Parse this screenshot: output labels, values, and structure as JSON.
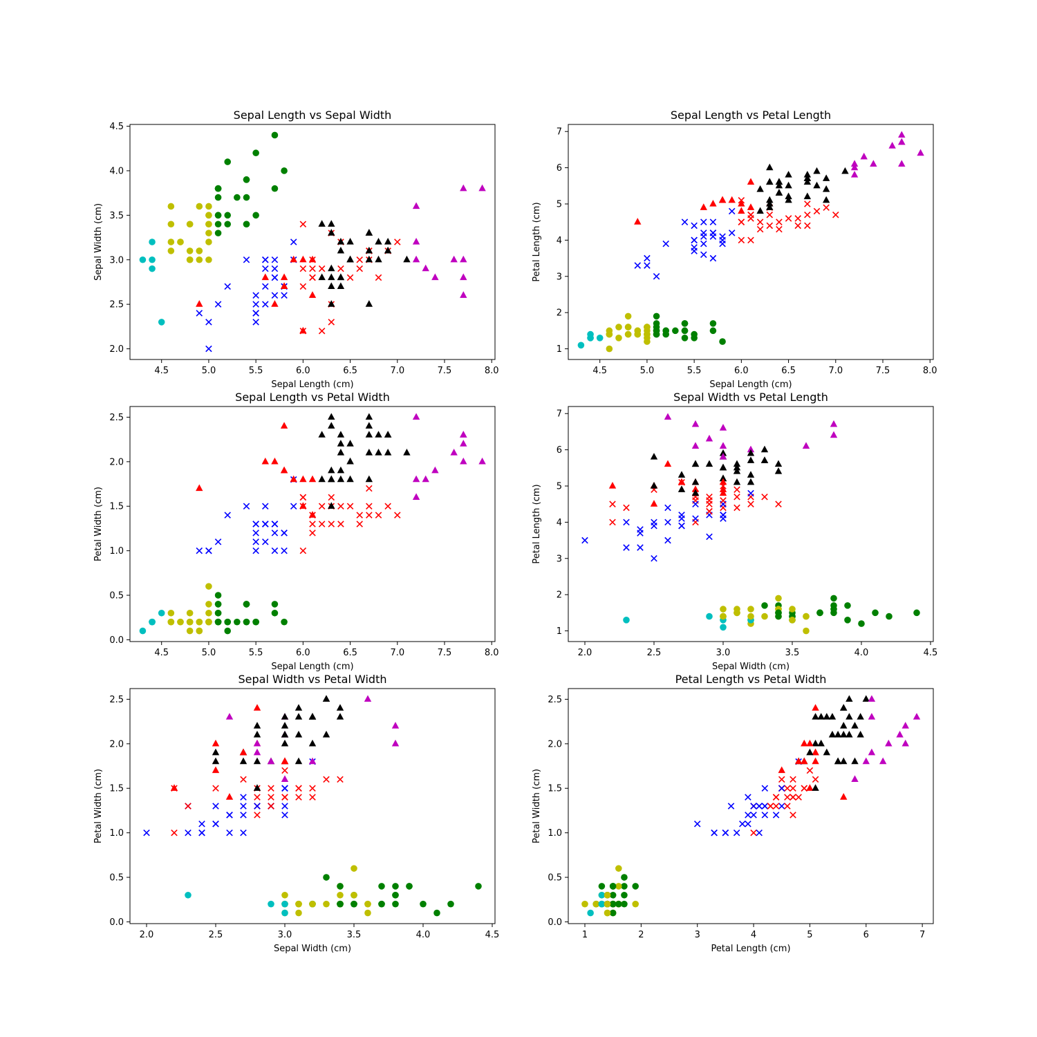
{
  "colors": {
    "setosa_small": "#00bfbf",
    "setosa_mid": "#bfbf00",
    "setosa_large": "#008000",
    "versicolor_small": "#0000ff",
    "versicolor_large": "#ff0000",
    "virginica_small": "#ff0000",
    "virginica_mid": "#000000",
    "virginica_large": "#bf00bf"
  },
  "markers": {
    "setosa": "circle",
    "versicolor": "x",
    "virginica": "triangle"
  },
  "iris": [
    [
      5.1,
      3.5,
      1.4,
      0.2,
      0
    ],
    [
      4.9,
      3.0,
      1.4,
      0.2,
      0
    ],
    [
      4.7,
      3.2,
      1.3,
      0.2,
      0
    ],
    [
      4.6,
      3.1,
      1.5,
      0.2,
      0
    ],
    [
      5.0,
      3.6,
      1.4,
      0.2,
      0
    ],
    [
      5.4,
      3.9,
      1.7,
      0.4,
      0
    ],
    [
      4.6,
      3.4,
      1.4,
      0.3,
      0
    ],
    [
      5.0,
      3.4,
      1.5,
      0.2,
      0
    ],
    [
      4.4,
      2.9,
      1.4,
      0.2,
      0
    ],
    [
      4.9,
      3.1,
      1.5,
      0.1,
      0
    ],
    [
      5.4,
      3.7,
      1.5,
      0.2,
      0
    ],
    [
      4.8,
      3.4,
      1.6,
      0.2,
      0
    ],
    [
      4.8,
      3.0,
      1.4,
      0.1,
      0
    ],
    [
      4.3,
      3.0,
      1.1,
      0.1,
      0
    ],
    [
      5.8,
      4.0,
      1.2,
      0.2,
      0
    ],
    [
      5.7,
      4.4,
      1.5,
      0.4,
      0
    ],
    [
      5.4,
      3.9,
      1.3,
      0.4,
      0
    ],
    [
      5.1,
      3.5,
      1.4,
      0.3,
      0
    ],
    [
      5.7,
      3.8,
      1.7,
      0.3,
      0
    ],
    [
      5.1,
      3.8,
      1.5,
      0.3,
      0
    ],
    [
      5.4,
      3.4,
      1.7,
      0.2,
      0
    ],
    [
      5.1,
      3.7,
      1.5,
      0.4,
      0
    ],
    [
      4.6,
      3.6,
      1.0,
      0.2,
      0
    ],
    [
      5.1,
      3.3,
      1.7,
      0.5,
      0
    ],
    [
      4.8,
      3.4,
      1.9,
      0.2,
      0
    ],
    [
      5.0,
      3.0,
      1.6,
      0.2,
      0
    ],
    [
      5.0,
      3.4,
      1.6,
      0.4,
      0
    ],
    [
      5.2,
      3.5,
      1.5,
      0.2,
      0
    ],
    [
      5.2,
      3.4,
      1.4,
      0.2,
      0
    ],
    [
      4.7,
      3.2,
      1.6,
      0.2,
      0
    ],
    [
      4.8,
      3.1,
      1.6,
      0.2,
      0
    ],
    [
      5.4,
      3.4,
      1.5,
      0.4,
      0
    ],
    [
      5.2,
      4.1,
      1.5,
      0.1,
      0
    ],
    [
      5.5,
      4.2,
      1.4,
      0.2,
      0
    ],
    [
      4.9,
      3.1,
      1.5,
      0.2,
      0
    ],
    [
      5.0,
      3.2,
      1.2,
      0.2,
      0
    ],
    [
      5.5,
      3.5,
      1.3,
      0.2,
      0
    ],
    [
      4.9,
      3.6,
      1.4,
      0.1,
      0
    ],
    [
      4.4,
      3.0,
      1.3,
      0.2,
      0
    ],
    [
      5.1,
      3.4,
      1.5,
      0.2,
      0
    ],
    [
      5.0,
      3.5,
      1.3,
      0.3,
      0
    ],
    [
      4.5,
      2.3,
      1.3,
      0.3,
      0
    ],
    [
      4.4,
      3.2,
      1.3,
      0.2,
      0
    ],
    [
      5.0,
      3.5,
      1.6,
      0.6,
      0
    ],
    [
      5.1,
      3.8,
      1.9,
      0.4,
      0
    ],
    [
      4.8,
      3.0,
      1.4,
      0.3,
      0
    ],
    [
      5.1,
      3.8,
      1.6,
      0.2,
      0
    ],
    [
      4.6,
      3.2,
      1.4,
      0.2,
      0
    ],
    [
      5.3,
      3.7,
      1.5,
      0.2,
      0
    ],
    [
      5.0,
      3.3,
      1.4,
      0.2,
      0
    ],
    [
      7.0,
      3.2,
      4.7,
      1.4,
      1
    ],
    [
      6.4,
      3.2,
      4.5,
      1.5,
      1
    ],
    [
      6.9,
      3.1,
      4.9,
      1.5,
      1
    ],
    [
      5.5,
      2.3,
      4.0,
      1.3,
      1
    ],
    [
      6.5,
      2.8,
      4.6,
      1.5,
      1
    ],
    [
      5.7,
      2.8,
      4.5,
      1.3,
      1
    ],
    [
      6.3,
      3.3,
      4.7,
      1.6,
      1
    ],
    [
      4.9,
      2.4,
      3.3,
      1.0,
      1
    ],
    [
      6.6,
      2.9,
      4.6,
      1.3,
      1
    ],
    [
      5.2,
      2.7,
      3.9,
      1.4,
      1
    ],
    [
      5.0,
      2.0,
      3.5,
      1.0,
      1
    ],
    [
      5.9,
      3.0,
      4.2,
      1.5,
      1
    ],
    [
      6.0,
      2.2,
      4.0,
      1.0,
      1
    ],
    [
      6.1,
      2.9,
      4.7,
      1.4,
      1
    ],
    [
      5.6,
      2.9,
      3.6,
      1.3,
      1
    ],
    [
      6.7,
      3.1,
      4.4,
      1.4,
      1
    ],
    [
      5.6,
      3.0,
      4.5,
      1.5,
      1
    ],
    [
      5.8,
      2.7,
      4.1,
      1.0,
      1
    ],
    [
      6.2,
      2.2,
      4.5,
      1.5,
      1
    ],
    [
      5.6,
      2.5,
      3.9,
      1.1,
      1
    ],
    [
      5.9,
      3.2,
      4.8,
      1.8,
      1
    ],
    [
      6.1,
      2.8,
      4.0,
      1.3,
      1
    ],
    [
      6.3,
      2.5,
      4.9,
      1.5,
      1
    ],
    [
      6.1,
      2.8,
      4.7,
      1.2,
      1
    ],
    [
      6.4,
      2.9,
      4.3,
      1.3,
      1
    ],
    [
      6.6,
      3.0,
      4.4,
      1.4,
      1
    ],
    [
      6.8,
      2.8,
      4.8,
      1.4,
      1
    ],
    [
      6.7,
      3.0,
      5.0,
      1.7,
      1
    ],
    [
      6.0,
      2.9,
      4.5,
      1.5,
      1
    ],
    [
      5.7,
      2.6,
      3.5,
      1.0,
      1
    ],
    [
      5.5,
      2.4,
      3.8,
      1.1,
      1
    ],
    [
      5.5,
      2.4,
      3.7,
      1.0,
      1
    ],
    [
      5.8,
      2.7,
      3.9,
      1.2,
      1
    ],
    [
      6.0,
      2.7,
      5.1,
      1.6,
      1
    ],
    [
      5.4,
      3.0,
      4.5,
      1.5,
      1
    ],
    [
      6.0,
      3.4,
      4.5,
      1.6,
      1
    ],
    [
      6.7,
      3.1,
      4.7,
      1.5,
      1
    ],
    [
      6.3,
      2.3,
      4.4,
      1.3,
      1
    ],
    [
      5.6,
      3.0,
      4.1,
      1.3,
      1
    ],
    [
      5.5,
      2.5,
      4.0,
      1.3,
      1
    ],
    [
      5.5,
      2.6,
      4.4,
      1.2,
      1
    ],
    [
      6.1,
      3.0,
      4.6,
      1.4,
      1
    ],
    [
      5.8,
      2.6,
      4.0,
      1.2,
      1
    ],
    [
      5.0,
      2.3,
      3.3,
      1.0,
      1
    ],
    [
      5.6,
      2.7,
      4.2,
      1.3,
      1
    ],
    [
      5.7,
      3.0,
      4.2,
      1.2,
      1
    ],
    [
      5.7,
      2.9,
      4.2,
      1.3,
      1
    ],
    [
      6.2,
      2.9,
      4.3,
      1.3,
      1
    ],
    [
      5.1,
      2.5,
      3.0,
      1.1,
      1
    ],
    [
      5.7,
      2.8,
      4.1,
      1.3,
      1
    ],
    [
      6.3,
      3.3,
      6.0,
      2.5,
      2
    ],
    [
      5.8,
      2.7,
      5.1,
      1.9,
      2
    ],
    [
      7.1,
      3.0,
      5.9,
      2.1,
      2
    ],
    [
      6.3,
      2.9,
      5.6,
      1.8,
      2
    ],
    [
      6.5,
      3.0,
      5.8,
      2.2,
      2
    ],
    [
      7.6,
      3.0,
      6.6,
      2.1,
      2
    ],
    [
      4.9,
      2.5,
      4.5,
      1.7,
      2
    ],
    [
      7.3,
      2.9,
      6.3,
      1.8,
      2
    ],
    [
      6.7,
      2.5,
      5.8,
      1.8,
      2
    ],
    [
      7.2,
      3.6,
      6.1,
      2.5,
      2
    ],
    [
      6.5,
      3.2,
      5.1,
      2.0,
      2
    ],
    [
      6.4,
      2.7,
      5.3,
      1.9,
      2
    ],
    [
      6.8,
      3.0,
      5.5,
      2.1,
      2
    ],
    [
      5.7,
      2.5,
      5.0,
      2.0,
      2
    ],
    [
      5.8,
      2.8,
      5.1,
      2.4,
      2
    ],
    [
      6.4,
      3.2,
      5.3,
      2.3,
      2
    ],
    [
      6.5,
      3.0,
      5.5,
      1.8,
      2
    ],
    [
      7.7,
      3.8,
      6.7,
      2.2,
      2
    ],
    [
      7.7,
      2.6,
      6.9,
      2.3,
      2
    ],
    [
      6.0,
      2.2,
      5.0,
      1.5,
      2
    ],
    [
      6.9,
      3.2,
      5.7,
      2.3,
      2
    ],
    [
      5.6,
      2.8,
      4.9,
      2.0,
      2
    ],
    [
      7.7,
      2.8,
      6.7,
      2.0,
      2
    ],
    [
      6.3,
      2.7,
      4.9,
      1.8,
      2
    ],
    [
      6.7,
      3.3,
      5.7,
      2.1,
      2
    ],
    [
      7.2,
      3.2,
      6.0,
      1.8,
      2
    ],
    [
      6.2,
      2.8,
      4.8,
      1.8,
      2
    ],
    [
      6.1,
      3.0,
      4.9,
      1.8,
      2
    ],
    [
      6.4,
      2.8,
      5.6,
      2.1,
      2
    ],
    [
      7.2,
      3.0,
      5.8,
      1.6,
      2
    ],
    [
      7.4,
      2.8,
      6.1,
      1.9,
      2
    ],
    [
      7.9,
      3.8,
      6.4,
      2.0,
      2
    ],
    [
      6.4,
      2.8,
      5.6,
      2.2,
      2
    ],
    [
      6.3,
      2.8,
      5.1,
      1.5,
      2
    ],
    [
      6.1,
      2.6,
      5.6,
      1.4,
      2
    ],
    [
      7.7,
      3.0,
      6.1,
      2.3,
      2
    ],
    [
      6.3,
      3.4,
      5.6,
      2.4,
      2
    ],
    [
      6.4,
      3.1,
      5.5,
      1.8,
      2
    ],
    [
      6.0,
      3.0,
      4.8,
      1.8,
      2
    ],
    [
      6.9,
      3.1,
      5.4,
      2.1,
      2
    ],
    [
      6.7,
      3.1,
      5.6,
      2.4,
      2
    ],
    [
      6.9,
      3.1,
      5.1,
      2.3,
      2
    ],
    [
      5.8,
      2.7,
      5.1,
      1.9,
      2
    ],
    [
      6.8,
      3.2,
      5.9,
      2.3,
      2
    ],
    [
      6.7,
      3.3,
      5.7,
      2.5,
      2
    ],
    [
      6.7,
      3.0,
      5.2,
      2.3,
      2
    ],
    [
      6.3,
      2.5,
      5.0,
      1.9,
      2
    ],
    [
      6.5,
      3.0,
      5.2,
      2.0,
      2
    ],
    [
      6.2,
      3.4,
      5.4,
      2.3,
      2
    ],
    [
      5.9,
      3.0,
      5.1,
      1.8,
      2
    ]
  ],
  "chart_data": [
    {
      "type": "scatter",
      "title": "Sepal Length vs Sepal Width",
      "xlabel": "Sepal Length (cm)",
      "ylabel": "Sepal Width (cm)",
      "x_feature": 0,
      "y_feature": 1,
      "xlim": [
        4.165,
        8.035
      ],
      "ylim": [
        1.88,
        4.52
      ],
      "xticks": [
        "4.5",
        "5.0",
        "5.5",
        "6.0",
        "6.5",
        "7.0",
        "7.5",
        "8.0"
      ],
      "yticks": [
        "2.0",
        "2.5",
        "3.0",
        "3.5",
        "4.0",
        "4.5"
      ]
    },
    {
      "type": "scatter",
      "title": "Sepal Length vs Petal Length",
      "xlabel": "Sepal Length (cm)",
      "ylabel": "Petal Length (cm)",
      "x_feature": 0,
      "y_feature": 2,
      "xlim": [
        4.165,
        8.035
      ],
      "ylim": [
        0.705,
        7.195
      ],
      "xticks": [
        "4.5",
        "5.0",
        "5.5",
        "6.0",
        "6.5",
        "7.0",
        "7.5",
        "8.0"
      ],
      "yticks": [
        "1",
        "2",
        "3",
        "4",
        "5",
        "6",
        "7"
      ]
    },
    {
      "type": "scatter",
      "title": "Sepal Length vs Petal Width",
      "xlabel": "Sepal Length (cm)",
      "ylabel": "Petal Width (cm)",
      "x_feature": 0,
      "y_feature": 3,
      "xlim": [
        4.165,
        8.035
      ],
      "ylim": [
        -0.02,
        2.62
      ],
      "xticks": [
        "4.5",
        "5.0",
        "5.5",
        "6.0",
        "6.5",
        "7.0",
        "7.5",
        "8.0"
      ],
      "yticks": [
        "0.0",
        "0.5",
        "1.0",
        "1.5",
        "2.0",
        "2.5"
      ]
    },
    {
      "type": "scatter",
      "title": "Sepal Width vs Petal Length",
      "xlabel": "Sepal Width (cm)",
      "ylabel": "Petal Length (cm)",
      "x_feature": 1,
      "y_feature": 2,
      "xlim": [
        1.88,
        4.52
      ],
      "ylim": [
        0.705,
        7.195
      ],
      "xticks": [
        "2.0",
        "2.5",
        "3.0",
        "3.5",
        "4.0",
        "4.5"
      ],
      "yticks": [
        "1",
        "2",
        "3",
        "4",
        "5",
        "6",
        "7"
      ]
    },
    {
      "type": "scatter",
      "title": "Sepal Width vs Petal Width",
      "xlabel": "Sepal Width (cm)",
      "ylabel": "Petal Width (cm)",
      "x_feature": 1,
      "y_feature": 3,
      "xlim": [
        1.88,
        4.52
      ],
      "ylim": [
        -0.02,
        2.62
      ],
      "xticks": [
        "2.0",
        "2.5",
        "3.0",
        "3.5",
        "4.0",
        "4.5"
      ],
      "yticks": [
        "0.0",
        "0.5",
        "1.0",
        "1.5",
        "2.0",
        "2.5"
      ]
    },
    {
      "type": "scatter",
      "title": "Petal Length vs Petal Width",
      "xlabel": "Petal Length (cm)",
      "ylabel": "Petal Width (cm)",
      "x_feature": 2,
      "y_feature": 3,
      "xlim": [
        0.705,
        7.195
      ],
      "ylim": [
        -0.02,
        2.62
      ],
      "xticks": [
        "1",
        "2",
        "3",
        "4",
        "5",
        "6",
        "7"
      ],
      "yticks": [
        "0.0",
        "0.5",
        "1.0",
        "1.5",
        "2.0",
        "2.5"
      ]
    }
  ]
}
